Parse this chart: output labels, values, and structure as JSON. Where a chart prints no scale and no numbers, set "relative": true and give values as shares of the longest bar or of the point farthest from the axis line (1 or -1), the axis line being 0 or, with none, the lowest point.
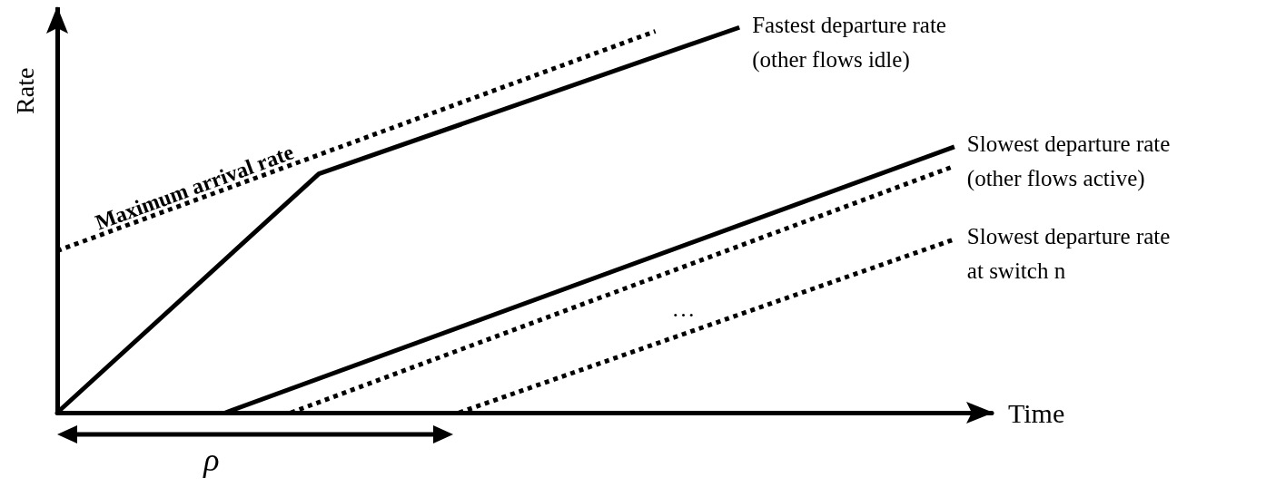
{
  "chart_data": {
    "type": "line",
    "relative": true,
    "xlabel": "Time",
    "ylabel": "Rate",
    "legend": false,
    "grid": false,
    "marker": "none",
    "categories": [
      null,
      null,
      null,
      null,
      null,
      null,
      null,
      null,
      null,
      null,
      null,
      null,
      null,
      null,
      null,
      null,
      null,
      null,
      null,
      null,
      null,
      null,
      null,
      null,
      null,
      null,
      null,
      null,
      null,
      null,
      null,
      null,
      null,
      null,
      null,
      null,
      null,
      null,
      null,
      null,
      null,
      null,
      null,
      null,
      null,
      null,
      null,
      null,
      null,
      null,
      null,
      null,
      null,
      null,
      null,
      null,
      null,
      null,
      null,
      null,
      null,
      null,
      null,
      null,
      null,
      null,
      null,
      null,
      null,
      null,
      null,
      null,
      null,
      null,
      null,
      null,
      null,
      null,
      null,
      null,
      null,
      null,
      null,
      null,
      null,
      null,
      null,
      null,
      null,
      null,
      null,
      null,
      null,
      null,
      null,
      null,
      null,
      null,
      null,
      null,
      null
    ],
    "series": [
      {
        "name": "Maximum arrival rate",
        "color": "#000000",
        "line_style": "dotted",
        "values": [
          0.42,
          null,
          null,
          null,
          null,
          null,
          null,
          null,
          null,
          null,
          null,
          null,
          null,
          null,
          null,
          null,
          null,
          null,
          null,
          null,
          null,
          null,
          null,
          null,
          null,
          null,
          null,
          null,
          null,
          null,
          null,
          null,
          null,
          null,
          null,
          null,
          null,
          null,
          null,
          null,
          null,
          null,
          null,
          null,
          null,
          null,
          null,
          null,
          null,
          null,
          null,
          null,
          null,
          null,
          null,
          null,
          null,
          null,
          null,
          null,
          null,
          null,
          null,
          null,
          0.99,
          null,
          null,
          null,
          null,
          null,
          null,
          null,
          null,
          null,
          null,
          null,
          null,
          null,
          null,
          null,
          null,
          null,
          null,
          null,
          null,
          null,
          null,
          null,
          null,
          null,
          null,
          null,
          null,
          null,
          null,
          null,
          null,
          null,
          null,
          null,
          null
        ]
      },
      {
        "name": "Fastest departure rate\n(other flows idle)",
        "color": "#000000",
        "line_style": "solid",
        "values": [
          0,
          null,
          null,
          null,
          null,
          null,
          null,
          null,
          null,
          null,
          null,
          null,
          null,
          null,
          null,
          null,
          null,
          null,
          null,
          null,
          null,
          null,
          null,
          null,
          null,
          null,
          null,
          null,
          0.62,
          null,
          null,
          null,
          null,
          null,
          null,
          null,
          null,
          null,
          null,
          null,
          null,
          null,
          null,
          null,
          null,
          null,
          null,
          null,
          null,
          null,
          null,
          null,
          null,
          null,
          null,
          null,
          null,
          null,
          null,
          null,
          null,
          null,
          null,
          null,
          null,
          null,
          null,
          null,
          null,
          null,
          null,
          null,
          null,
          1,
          null,
          null,
          null,
          null,
          null,
          null,
          null,
          null,
          null,
          null,
          null,
          null,
          null,
          null,
          null,
          null,
          null,
          null,
          null,
          null,
          null,
          null,
          null,
          null,
          null,
          null,
          null
        ]
      },
      {
        "name": "Slowest departure rate\n(other flows active)",
        "color": "#000000",
        "line_style": "solid",
        "values": [
          null,
          null,
          null,
          null,
          null,
          null,
          null,
          null,
          null,
          null,
          null,
          null,
          null,
          null,
          null,
          null,
          null,
          null,
          0,
          null,
          null,
          null,
          null,
          null,
          null,
          null,
          null,
          null,
          null,
          null,
          null,
          null,
          null,
          null,
          null,
          null,
          null,
          null,
          null,
          null,
          null,
          null,
          null,
          null,
          null,
          null,
          null,
          null,
          null,
          null,
          null,
          null,
          null,
          null,
          null,
          null,
          null,
          null,
          null,
          null,
          null,
          null,
          null,
          null,
          null,
          null,
          null,
          null,
          null,
          null,
          null,
          null,
          null,
          null,
          null,
          null,
          null,
          null,
          null,
          null,
          null,
          null,
          null,
          null,
          null,
          null,
          null,
          null,
          null,
          null,
          null,
          null,
          null,
          null,
          null,
          null,
          0.69,
          null,
          null,
          null,
          null
        ]
      },
      {
        "color": "#000000",
        "line_style": "dotted",
        "values": [
          null,
          null,
          null,
          null,
          null,
          null,
          null,
          null,
          null,
          null,
          null,
          null,
          null,
          null,
          null,
          null,
          null,
          null,
          null,
          null,
          null,
          null,
          null,
          null,
          null,
          0,
          null,
          null,
          null,
          null,
          null,
          null,
          null,
          null,
          null,
          null,
          null,
          null,
          null,
          null,
          null,
          null,
          null,
          null,
          null,
          null,
          null,
          null,
          null,
          null,
          null,
          null,
          null,
          null,
          null,
          null,
          null,
          null,
          null,
          null,
          null,
          null,
          null,
          null,
          null,
          null,
          null,
          null,
          null,
          null,
          null,
          null,
          null,
          null,
          null,
          null,
          null,
          null,
          null,
          null,
          null,
          null,
          null,
          null,
          null,
          null,
          null,
          null,
          null,
          null,
          null,
          null,
          null,
          null,
          null,
          null,
          0.64,
          null,
          null,
          null,
          null
        ]
      },
      {
        "name": "Slowest departure rate\nat switch n",
        "color": "#000000",
        "line_style": "dotted",
        "values": [
          null,
          null,
          null,
          null,
          null,
          null,
          null,
          null,
          null,
          null,
          null,
          null,
          null,
          null,
          null,
          null,
          null,
          null,
          null,
          null,
          null,
          null,
          null,
          null,
          null,
          null,
          null,
          null,
          null,
          null,
          null,
          null,
          null,
          null,
          null,
          null,
          null,
          null,
          null,
          null,
          null,
          null,
          null,
          0,
          null,
          null,
          null,
          null,
          null,
          null,
          null,
          null,
          null,
          null,
          null,
          null,
          null,
          null,
          null,
          null,
          null,
          null,
          null,
          null,
          null,
          null,
          null,
          null,
          null,
          null,
          null,
          null,
          null,
          null,
          null,
          null,
          null,
          null,
          null,
          null,
          null,
          null,
          null,
          null,
          null,
          null,
          null,
          null,
          null,
          null,
          null,
          null,
          null,
          null,
          null,
          null,
          0.45,
          null,
          null,
          null,
          null
        ]
      }
    ],
    "annotations": [
      "…",
      "ρ"
    ]
  }
}
